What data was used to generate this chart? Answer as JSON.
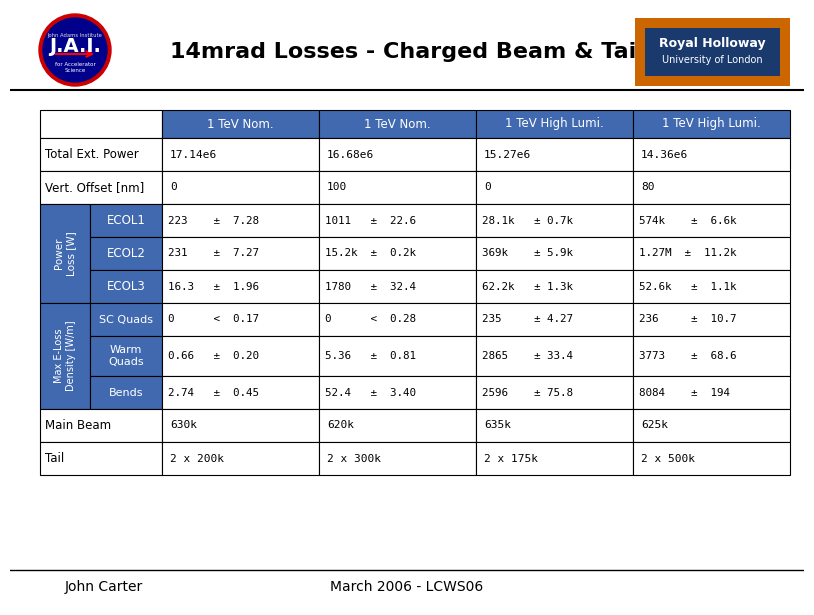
{
  "title": "14mrad Losses - Charged Beam & Tail",
  "title_fontsize": 16,
  "footer_left": "John Carter",
  "footer_right": "March 2006 - LCWS06",
  "footer_fontsize": 10,
  "bg_color": "#ffffff",
  "header_bg": "#4169b0",
  "header_text_color": "#ffffff",
  "border_color": "#000000",
  "col_headers": [
    "1 TeV Nom.",
    "1 TeV Nom.",
    "1 TeV High Lumi.",
    "1 TeV High Lumi."
  ],
  "row1_label": "Total Ext. Power",
  "row1_data": [
    "17.14e6",
    "16.68e6",
    "15.27e6",
    "14.36e6"
  ],
  "row2_label": "Vert. Offset [nm]",
  "row2_data": [
    "0",
    "100",
    "0",
    "80"
  ],
  "power_loss_label": "Power\nLoss [W]",
  "ecol_labels": [
    "ECOL1",
    "ECOL2",
    "ECOL3"
  ],
  "ecol1_data": [
    "223    ±  7.28",
    "1011   ±  22.6",
    "28.1k   ± 0.7k",
    "574k    ±  6.6k"
  ],
  "ecol2_data": [
    "231    ±  7.27",
    "15.2k  ±  0.2k",
    "369k    ± 5.9k",
    "1.27M  ±  11.2k"
  ],
  "ecol3_data": [
    "16.3   ±  1.96",
    "1780   ±  32.4",
    "62.2k   ± 1.3k",
    "52.6k   ±  1.1k"
  ],
  "max_eloss_label": "Max E-Loss\nDensity [W/m]",
  "eloss_labels": [
    "SC Quads",
    "Warm\nQuads",
    "Bends"
  ],
  "scquads_data": [
    "0      <  0.17",
    "0      <  0.28",
    "235     ± 4.27",
    "236     ±  10.7"
  ],
  "warmquads_data": [
    "0.66   ±  0.20",
    "5.36   ±  0.81",
    "2865    ± 33.4",
    "3773    ±  68.6"
  ],
  "bends_data": [
    "2.74   ±  0.45",
    "52.4   ±  3.40",
    "2596    ± 75.8",
    "8084    ±  194"
  ],
  "mainbeam_label": "Main Beam",
  "mainbeam_data": [
    "630k",
    "620k",
    "635k",
    "625k"
  ],
  "tail_label": "Tail",
  "tail_data": [
    "2 x 200k",
    "2 x 300k",
    "2 x 175k",
    "2 x 500k"
  ],
  "rh_border_color": "#cc6600",
  "rh_inner_color": "#1a3a6e",
  "rh_line1": "Royal Holloway",
  "rh_line2": "University of London"
}
